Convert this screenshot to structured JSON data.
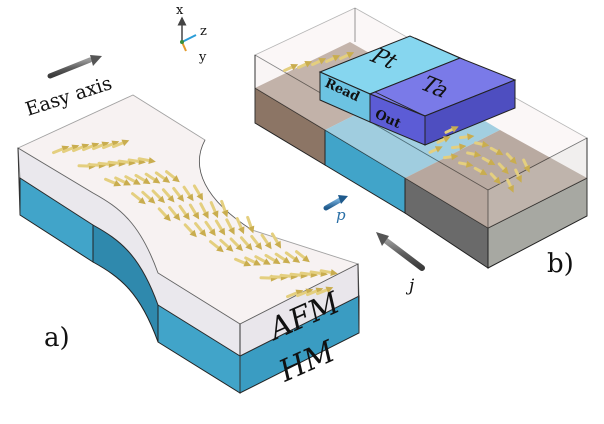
{
  "axes_triad": {
    "x": "x",
    "z": "z",
    "y": "y"
  },
  "easy_axis_label": "Easy axis",
  "panel_a": {
    "label": "a)",
    "layer_top": "AFM",
    "layer_bottom": "HM"
  },
  "panel_b": {
    "label": "b)",
    "contact_pt": "Pt",
    "contact_ta": "Ta",
    "read_label": "Read",
    "out_label": "Out"
  },
  "vectors": {
    "p": "p",
    "j": "j"
  },
  "colors": {
    "heavy_metal": "#41a4c9",
    "heavy_metal_dark": "#2d7fa0",
    "afm_glass": "#e9dede",
    "pt_contact": "#7fd4ee",
    "ta_contact": "#6e6ee8",
    "brown_region": "#8a7565",
    "spin_arrow": "#e4cf7f"
  }
}
